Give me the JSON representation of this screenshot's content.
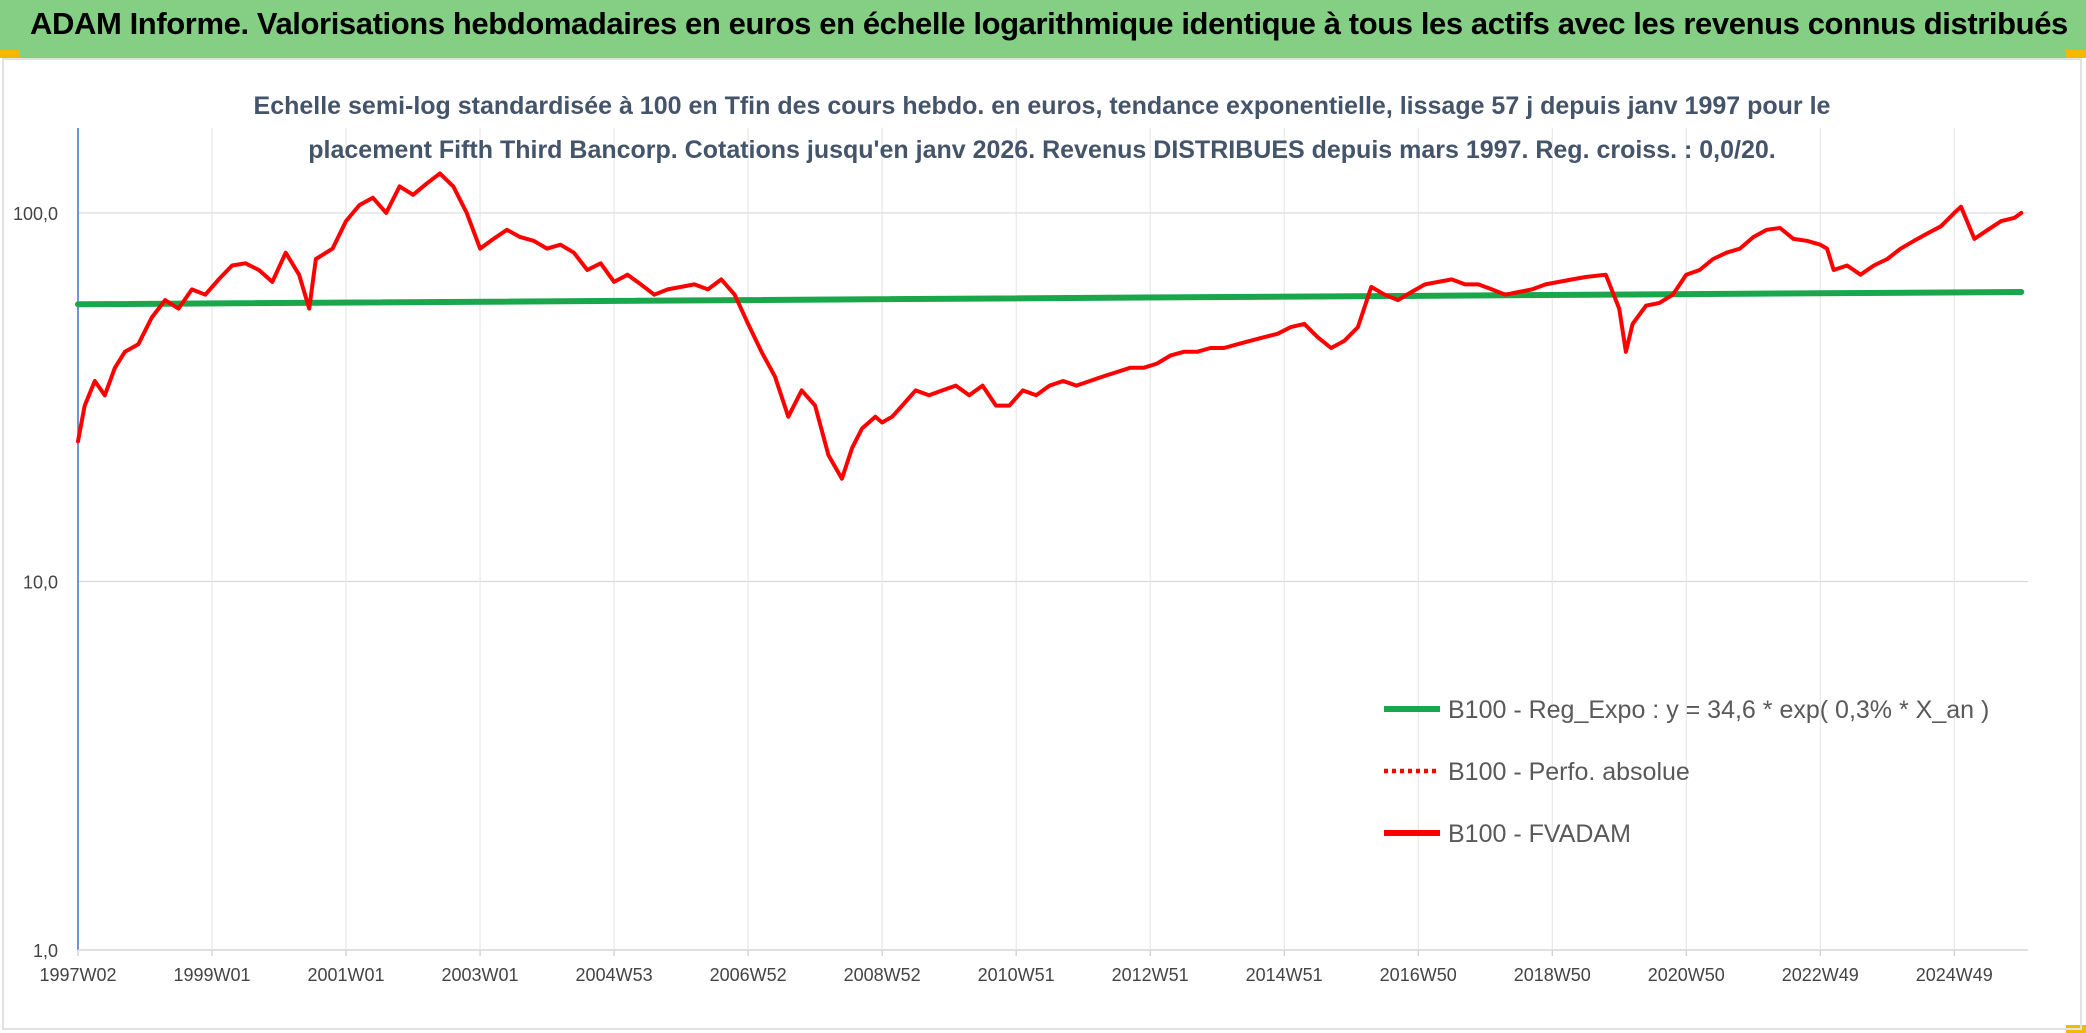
{
  "header": {
    "title": "ADAM Informe. Valorisations hebdomadaires en euros en échelle logarithmique identique à tous les actifs avec les revenus connus distribués",
    "background": "#84cf84"
  },
  "chart_data": {
    "type": "line",
    "title_line1": "Echelle semi-log standardisée à 100 en Tfin des cours hebdo. en euros, tendance exponentielle, lissage 57 j depuis janv 1997 pour le",
    "title_line2": "placement Fifth Third Bancorp. Cotations jusqu'en janv 2026. Revenus DISTRIBUES depuis mars 1997. Reg. croiss. : 0,0/20.",
    "y_scale": "log",
    "ylim": [
      1,
      170
    ],
    "y_ticks": [
      {
        "value": 1,
        "label": "1,0"
      },
      {
        "value": 10,
        "label": "10,0"
      },
      {
        "value": 100,
        "label": "100,0"
      }
    ],
    "x_range": [
      1997.0,
      2026.1
    ],
    "x_tick_labels": [
      "1997W02",
      "1999W01",
      "2001W01",
      "2003W01",
      "2004W53",
      "2006W52",
      "2008W52",
      "2010W51",
      "2012W51",
      "2014W51",
      "2016W50",
      "2018W50",
      "2020W50",
      "2022W49",
      "2024W49"
    ],
    "grid": true,
    "legend_position": "bottom-right",
    "series": [
      {
        "name": "B100 - Reg_Expo : y = 34,6 * exp( 0,3% *  X_an )",
        "color": "#1aa64a",
        "style": "solid",
        "x": [
          1997.0,
          2026.0
        ],
        "values": [
          56.5,
          61
        ]
      },
      {
        "name": "B100 - Perfo. absolue",
        "color": "#ff0000",
        "style": "dotted",
        "x": [],
        "values": []
      },
      {
        "name": "B100 - FVADAM",
        "color": "#ff0000",
        "style": "solid",
        "x": [
          1997.0,
          1997.1,
          1997.25,
          1997.4,
          1997.55,
          1997.7,
          1997.9,
          1998.1,
          1998.3,
          1998.5,
          1998.7,
          1998.9,
          1999.1,
          1999.3,
          1999.5,
          1999.7,
          1999.9,
          2000.1,
          2000.3,
          2000.45,
          2000.55,
          2000.8,
          2001.0,
          2001.2,
          2001.4,
          2001.6,
          2001.8,
          2002.0,
          2002.2,
          2002.4,
          2002.6,
          2002.8,
          2003.0,
          2003.2,
          2003.4,
          2003.6,
          2003.8,
          2004.0,
          2004.2,
          2004.4,
          2004.6,
          2004.8,
          2005.0,
          2005.2,
          2005.4,
          2005.6,
          2005.8,
          2006.0,
          2006.2,
          2006.4,
          2006.6,
          2006.8,
          2007.0,
          2007.2,
          2007.4,
          2007.6,
          2007.8,
          2008.0,
          2008.2,
          2008.4,
          2008.55,
          2008.7,
          2008.9,
          2009.0,
          2009.15,
          2009.3,
          2009.5,
          2009.7,
          2009.9,
          2010.1,
          2010.3,
          2010.5,
          2010.7,
          2010.9,
          2011.1,
          2011.3,
          2011.5,
          2011.7,
          2011.9,
          2012.1,
          2012.3,
          2012.5,
          2012.7,
          2012.9,
          2013.1,
          2013.3,
          2013.5,
          2013.7,
          2013.9,
          2014.1,
          2014.3,
          2014.5,
          2014.7,
          2014.9,
          2015.1,
          2015.3,
          2015.5,
          2015.7,
          2015.9,
          2016.1,
          2016.3,
          2016.5,
          2016.7,
          2016.9,
          2017.1,
          2017.3,
          2017.5,
          2017.7,
          2017.9,
          2018.1,
          2018.3,
          2018.5,
          2018.7,
          2018.9,
          2019.1,
          2019.3,
          2019.5,
          2019.8,
          2020.0,
          2020.1,
          2020.2,
          2020.4,
          2020.6,
          2020.8,
          2021.0,
          2021.2,
          2021.4,
          2021.6,
          2021.8,
          2022.0,
          2022.2,
          2022.4,
          2022.6,
          2022.8,
          2023.0,
          2023.1,
          2023.2,
          2023.4,
          2023.6,
          2023.8,
          2024.0,
          2024.2,
          2024.4,
          2024.6,
          2024.8,
          2025.0,
          2025.1,
          2025.3,
          2025.5,
          2025.7,
          2025.9,
          2026.0
        ],
        "values": [
          24,
          30,
          35,
          32,
          38,
          42,
          44,
          52,
          58,
          55,
          62,
          60,
          66,
          72,
          73,
          70,
          65,
          78,
          68,
          55,
          75,
          80,
          95,
          105,
          110,
          100,
          118,
          112,
          120,
          128,
          118,
          100,
          80,
          85,
          90,
          86,
          84,
          80,
          82,
          78,
          70,
          73,
          65,
          68,
          64,
          60,
          62,
          63,
          64,
          62,
          66,
          60,
          50,
          42,
          36,
          28,
          33,
          30,
          22,
          19,
          23,
          26,
          28,
          27,
          28,
          30,
          33,
          32,
          33,
          34,
          32,
          34,
          30,
          30,
          33,
          32,
          34,
          35,
          34,
          35,
          36,
          37,
          38,
          38,
          39,
          41,
          42,
          42,
          43,
          43,
          44,
          45,
          46,
          47,
          49,
          50,
          46,
          43,
          45,
          49,
          63,
          60,
          58,
          61,
          64,
          65,
          66,
          64,
          64,
          62,
          60,
          61,
          62,
          64,
          65,
          66,
          67,
          68,
          55,
          42,
          50,
          56,
          57,
          60,
          68,
          70,
          75,
          78,
          80,
          86,
          90,
          91,
          85,
          84,
          82,
          80,
          70,
          72,
          68,
          72,
          75,
          80,
          84,
          88,
          92,
          100,
          104,
          85,
          90,
          95,
          97,
          100
        ]
      }
    ]
  }
}
